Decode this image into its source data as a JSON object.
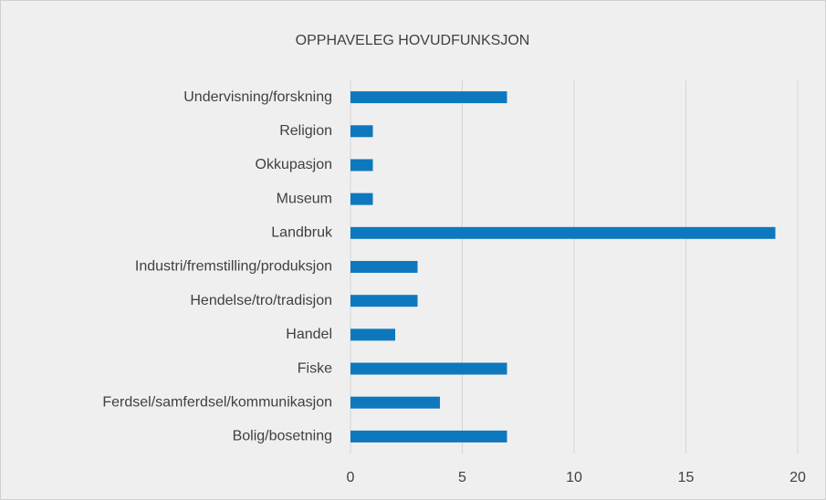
{
  "chart_data": {
    "type": "bar",
    "orientation": "horizontal",
    "title": "OPPHAVELEG HOVUDFUNKSJON",
    "categories": [
      "Undervisning/forskning",
      "Religion",
      "Okkupasjon",
      "Museum",
      "Landbruk",
      "Industri/fremstilling/produksjon",
      "Hendelse/tro/tradisjon",
      "Handel",
      "Fiske",
      "Ferdsel/samferdsel/kommunikasjon",
      "Bolig/bosetning"
    ],
    "values": [
      7,
      1,
      1,
      1,
      19,
      3,
      3,
      2,
      7,
      4,
      7
    ],
    "color": "#0e78bf",
    "xlim": [
      0,
      20
    ],
    "xticks": [
      0,
      5,
      10,
      15,
      20
    ],
    "grid": true
  }
}
